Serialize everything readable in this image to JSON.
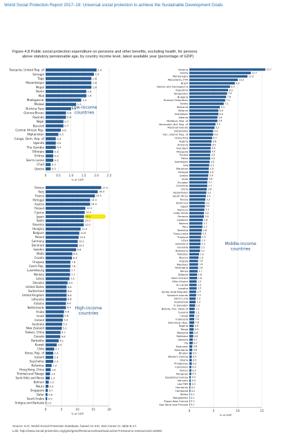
{
  "header": {
    "running_title": "World Social Protection Report 2017–19: Universal social protection to achieve the Sustainable Development Goals",
    "figure_title_line1": "Figure 4.8  Public social protection expenditure on pensions and other benefits, excluding health, for persons",
    "figure_title_line2": "above statutory pensionable age, by country income level, latest available year (percentage of GDP)"
  },
  "footer": {
    "source": "Source: ILO, World Social Protection Database, based on SSI. See Annex IV, table B.17.",
    "link": "Link: http://www.social-protection.org/gimi/gess/RessourceDownload.action?ressource.ressourceId=54660"
  },
  "colors": {
    "bar": "#2b5f95",
    "highlight": "#f5e800",
    "group_label": "#1f4f86"
  },
  "chart_data": [
    {
      "type": "bar",
      "orientation": "horizontal",
      "group_label": "Low-income countries",
      "xlabel": "% of GDP",
      "xlim": [
        0,
        2.5
      ],
      "xticks": [
        0,
        0.5,
        1.0,
        1.5,
        2.0,
        2.5
      ],
      "xtick_labels": [
        "0",
        "0.5",
        "1.0",
        "1.5",
        "2.0",
        "2.5"
      ],
      "grid": true,
      "categories": [
        "Tanzania, United Rep. of",
        "Senegal",
        "Togo",
        "Mozambique",
        "Nepal",
        "Benin",
        "Mali",
        "Madagascar",
        "Malawi",
        "Burkina Faso",
        "Guinea-Bissau",
        "Rwanda",
        "Niger",
        "Burundi",
        "Central African Rep.",
        "Afghanistan",
        "Congo, Dem. Rep. of",
        "Uganda",
        "The Gambia",
        "Ethiopia",
        "Eritrea",
        "Sierra Leone",
        "Chad",
        "Liberia"
      ],
      "values": [
        2.0,
        1.9,
        1.8,
        1.8,
        1.8,
        1.6,
        1.6,
        1.4,
        1.2,
        1.0,
        0.8,
        0.8,
        0.7,
        0.7,
        0.6,
        0.5,
        0.4,
        0.4,
        0.4,
        0.3,
        0.3,
        0.3,
        0.2,
        0.2
      ],
      "value_labels": [
        "2.0",
        "1.9",
        "1.8",
        "1.8",
        "1.8",
        "1.6",
        "1.6",
        "1.4",
        "1.2",
        "1.0",
        "0.8",
        "0.8",
        "0.7",
        "0.7",
        "0.6",
        "0.5",
        "0.4",
        "0.4",
        "0.4",
        "0.3",
        "0.3",
        "0.3",
        "0.2",
        "0.2"
      ]
    },
    {
      "type": "bar",
      "orientation": "horizontal",
      "group_label": "High-income countries",
      "xlabel": "% of GDP",
      "xlim": [
        0,
        20
      ],
      "xticks": [
        0,
        5,
        10,
        15,
        20
      ],
      "xtick_labels": [
        "0",
        "5",
        "10",
        "15",
        "20"
      ],
      "grid": true,
      "highlighted_category": "Japan",
      "categories": [
        "Greece",
        "Italy",
        "France",
        "Portugal",
        "Austria",
        "Finland",
        "Cyprus",
        "Japan",
        "Spain",
        "Slovenia",
        "Hungary",
        "Belgium",
        "Poland",
        "Germany",
        "Denmark",
        "Sweden",
        "Malta",
        "Croatia",
        "Uruguay",
        "Czech Rep.",
        "Luxembourg",
        "Norway",
        "Latvia",
        "Slovakia",
        "United States",
        "Switzerland",
        "United Kingdom",
        "Lithuania",
        "Estonia",
        "Netherlands",
        "Aruba",
        "Israel",
        "Ireland",
        "Australia",
        "New Zealand",
        "Taiwan, China",
        "Canada",
        "Barbados",
        "Kuwait",
        "Chile",
        "Korea, Rep. of",
        "Iceland",
        "Seychelles",
        "Bahamas",
        "Hong Kong, China",
        "Trinidad and Tobago",
        "Saint Kitts and Nevis",
        "Bahrain",
        "Nauru",
        "Singapore",
        "Qatar",
        "Saudi Arabia",
        "Antigua and Barbuda"
      ],
      "values": [
        17.5,
        16.4,
        15.5,
        14.0,
        14.0,
        12.5,
        12.3,
        12.1,
        12.0,
        12.0,
        11.0,
        10.6,
        10.4,
        10.1,
        10.1,
        9.6,
        8.4,
        8.3,
        7.8,
        7.8,
        7.7,
        7.7,
        7.5,
        6.9,
        6.6,
        6.6,
        6.6,
        6.6,
        6.4,
        6.4,
        5.8,
        5.6,
        5.4,
        5.2,
        5.1,
        4.7,
        4.6,
        4.1,
        3.5,
        2.7,
        2.4,
        2.4,
        2.4,
        1.9,
        1.6,
        1.4,
        1.3,
        1.0,
        0.9,
        0.7,
        0.6,
        0.5,
        0.2
      ],
      "value_labels": [
        "17.5",
        "16.4",
        "15.5",
        "14.0",
        "14.0",
        "12.5",
        "12.3",
        "12.1",
        "12.0",
        "12.0",
        "11.0",
        "10.6",
        "10.4",
        "10.1",
        "10.1",
        "9.6",
        "8.4",
        "8.3",
        "7.8",
        "7.8",
        "7.7",
        "7.7",
        "7.5",
        "6.9",
        "6.6",
        "6.6",
        "6.6",
        "6.6",
        "6.4",
        "6.4",
        "5.8",
        "5.6",
        "5.4",
        "5.2",
        "5.1",
        "4.7",
        "4.6",
        "4.1",
        "3.5",
        "2.7",
        "2.4",
        "2.4",
        "2.4",
        "1.9",
        "1.6",
        "1.4",
        "1.3",
        "1.0",
        "0.9",
        "0.7",
        "0.6",
        "0.5",
        "0.2"
      ]
    },
    {
      "type": "bar",
      "orientation": "horizontal",
      "group_label": "Middle-income countries",
      "xlabel": "% of GDP",
      "xlim": [
        0,
        15
      ],
      "xticks": [
        0,
        5,
        10,
        15
      ],
      "xtick_labels": [
        "0",
        "5",
        "10",
        "15"
      ],
      "grid": true,
      "categories": [
        "Ukraine",
        "Serbia",
        "Montenegro",
        "Macedonia, FYR",
        "Brazil",
        "Bosnia and Herzegovina",
        "Argentina",
        "Kyrgyzstan",
        "Bulgaria",
        "Russian Federation",
        "Turkey",
        "Romania",
        "Belarus",
        "Azerbaijan",
        "Albania",
        "Moldova, Rep. of",
        "Venezuela, Bol. Rep. of",
        "Marshall Islands",
        "Uzbekistan",
        "Iran, Islamic Rep. of",
        "Costa Rica",
        "Algeria",
        "Armenia",
        "Viet Nam",
        "Mongolia",
        "Tunisia",
        "Palau",
        "Azerbaijan",
        "Iraq",
        "Mauritius",
        "Georgia",
        "Jordan",
        "India",
        "Ecuador",
        "Colombia",
        "China",
        "Kazakhstan",
        "South Africa",
        "Tuvalu",
        "Dominica",
        "Egypt",
        "Morocco",
        "Cabo Verde",
        "Panama",
        "Lebanon",
        "Kosovo",
        "Peru",
        "Namibia",
        "Timor-Leste",
        "Thailand",
        "Libya",
        "Swaziland",
        "Grenada",
        "Botswana",
        "Pakistan",
        "Mexico",
        "Angola",
        "Maldives",
        "Nicaragua",
        "Kenya",
        "Djibouti",
        "Saint Vincent",
        "Côte d'Ivoire",
        "Sri Lanka",
        "Lesotho",
        "Syrian Arab Republic",
        "Solomon Islands",
        "Saint Lucia",
        "Guatemala",
        "El Salvador",
        "Bolivia, Plur. State of",
        "Guyana",
        "Congo",
        "Indonesia",
        "Dominican Rep.",
        "Nigeria",
        "Tonga",
        "Malaysia",
        "Tajikistan",
        "Jamaica",
        "Fiji",
        "Myanmar",
        "Mauritania",
        "Bhutan",
        "Western Samoa",
        "Ghana",
        "Philippines",
        "Cameroon",
        "Yemen",
        "Paraguay",
        "Equatorial Guinea",
        "Vanuatu",
        "Lao PDR",
        "Honduras",
        "Cambodia",
        "Belize",
        "Bangladesh",
        "Papua New Guinea",
        "Sao Tome and Principe"
      ],
      "values": [
        15.7,
        12.7,
        12.0,
        10.0,
        9.4,
        8.4,
        8.0,
        7.8,
        7.6,
        7.4,
        7.1,
        6.3,
        6.0,
        6.0,
        5.8,
        5.8,
        5.4,
        5.2,
        4.9,
        4.9,
        4.7,
        4.6,
        4.5,
        4.4,
        4.4,
        4.3,
        4.3,
        4.2,
        4.1,
        4.0,
        4.0,
        3.9,
        3.8,
        3.7,
        3.7,
        3.6,
        3.5,
        3.4,
        3.3,
        3.2,
        3.2,
        3.1,
        3.0,
        3.0,
        2.8,
        2.7,
        2.7,
        2.6,
        2.5,
        2.4,
        2.3,
        2.3,
        2.2,
        2.2,
        2.0,
        1.9,
        1.8,
        1.8,
        1.8,
        1.7,
        1.6,
        1.6,
        1.5,
        1.5,
        1.5,
        1.4,
        1.4,
        1.3,
        1.3,
        1.2,
        1.1,
        1.1,
        1.0,
        1.0,
        1.0,
        0.9,
        0.9,
        0.8,
        0.8,
        0.7,
        0.7,
        0.6,
        0.6,
        0.5,
        0.5,
        0.5,
        0.5,
        0.4,
        0.4,
        0.4,
        0.3,
        0.3,
        0.3,
        0.2,
        0.2,
        0.1,
        0.1,
        0.1,
        0.1
      ],
      "value_labels": [
        "15.7",
        "12.7",
        "12.0",
        "10.0",
        "9.4",
        "8.4",
        "8.0",
        "7.8",
        "7.6",
        "7.4",
        "7.1",
        "6.3",
        "6.0",
        "6.0",
        "5.8",
        "5.8",
        "5.4",
        "5.2",
        "4.9",
        "4.9",
        "4.7",
        "4.6",
        "4.5",
        "4.4",
        "4.4",
        "4.3",
        "4.3",
        "4.2",
        "4.1",
        "4.0",
        "4.0",
        "3.9",
        "3.8",
        "3.7",
        "3.7",
        "3.6",
        "3.5",
        "3.4",
        "3.3",
        "3.2",
        "3.2",
        "3.1",
        "3.0",
        "3.0",
        "2.8",
        "2.7",
        "2.7",
        "2.6",
        "2.5",
        "2.4",
        "2.3",
        "2.3",
        "2.2",
        "2.2",
        "2.0",
        "1.9",
        "1.8",
        "1.8",
        "1.8",
        "1.7",
        "1.6",
        "1.6",
        "1.5",
        "1.5",
        "1.5",
        "1.4",
        "1.4",
        "1.3",
        "1.3",
        "1.2",
        "1.1",
        "1.1",
        "1.0",
        "1.0",
        "1.0",
        "0.9",
        "0.9",
        "0.8",
        "0.8",
        "0.7",
        "0.7",
        "0.6",
        "0.6",
        "0.5",
        "0.5",
        "0.5",
        "0.5",
        "0.4",
        "0.4",
        "0.4",
        "0.3",
        "0.3",
        "0.3",
        "0.2",
        "0.2",
        "0.1",
        "0.1",
        "0.1",
        "0.1"
      ]
    }
  ]
}
